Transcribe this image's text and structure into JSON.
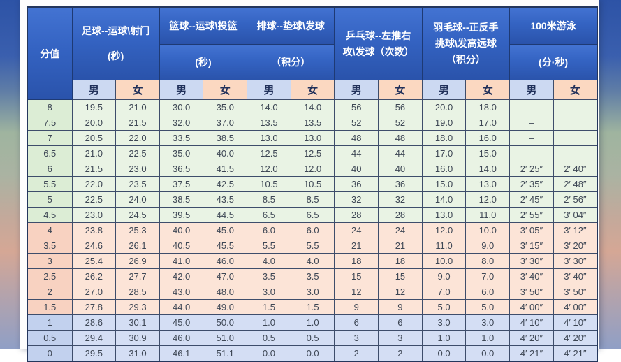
{
  "colors": {
    "header_blue_top": "#4373d2",
    "header_blue_bottom": "#2a53ab",
    "male_header_bg": "#ccd9f2",
    "female_header_bg": "#fbd8c1",
    "band_green_bg": "#e9f3e4",
    "band_green_score_bg": "#dcedd5",
    "band_pink_bg": "#fce4d7",
    "band_pink_score_bg": "#f8d2c1",
    "band_blue_bg": "#d4def4",
    "band_blue_score_bg": "#c2d1ee",
    "grid_border": "#3e4d6b",
    "header_text": "#ffffff",
    "cell_text": "#3e4755"
  },
  "chart_data": {
    "type": "table",
    "score_column": "分值",
    "gender_labels": [
      "男",
      "女"
    ],
    "groups": [
      {
        "id": "football",
        "lines": [
          "足球--运球\\射门",
          "(秒)"
        ]
      },
      {
        "id": "basketball",
        "lines": [
          "篮球--运球\\投篮",
          "(秒)"
        ]
      },
      {
        "id": "volleyball",
        "lines": [
          "排球--垫球\\发球",
          "（积分）"
        ]
      },
      {
        "id": "pingpong",
        "lines": [
          "乒乓球--左推右",
          "攻\\发球（次数）"
        ]
      },
      {
        "id": "badminton",
        "lines": [
          "羽毛球--正反手",
          "挑球\\发高远球",
          "（积分）"
        ]
      },
      {
        "id": "swimming",
        "lines": [
          "100米游泳",
          "(分·秒)"
        ]
      }
    ],
    "rows": [
      {
        "score": "8",
        "band": "green",
        "values": [
          "19.5",
          "21.0",
          "30.0",
          "35.0",
          "14.0",
          "14.0",
          "56",
          "56",
          "20.0",
          "18.0",
          "–",
          ""
        ]
      },
      {
        "score": "7.5",
        "band": "green",
        "values": [
          "20.0",
          "21.5",
          "32.0",
          "37.0",
          "13.5",
          "13.5",
          "52",
          "52",
          "19.0",
          "17.0",
          "–",
          ""
        ]
      },
      {
        "score": "7",
        "band": "green",
        "values": [
          "20.5",
          "22.0",
          "33.5",
          "38.5",
          "13.0",
          "13.0",
          "48",
          "48",
          "18.0",
          "16.0",
          "–",
          ""
        ]
      },
      {
        "score": "6.5",
        "band": "green",
        "values": [
          "21.0",
          "22.5",
          "35.0",
          "40.0",
          "12.5",
          "12.5",
          "44",
          "44",
          "17.0",
          "15.0",
          "–",
          ""
        ]
      },
      {
        "score": "6",
        "band": "green",
        "values": [
          "21.5",
          "23.0",
          "36.5",
          "41.5",
          "12.0",
          "12.0",
          "40",
          "40",
          "16.0",
          "14.0",
          "2′ 25″",
          "2′ 40″"
        ]
      },
      {
        "score": "5.5",
        "band": "green",
        "values": [
          "22.0",
          "23.5",
          "37.5",
          "42.5",
          "10.5",
          "10.5",
          "36",
          "36",
          "15.0",
          "13.0",
          "2′ 35″",
          "2′ 48″"
        ]
      },
      {
        "score": "5",
        "band": "green",
        "values": [
          "22.5",
          "24.0",
          "38.5",
          "43.5",
          "8.5",
          "8.5",
          "32",
          "32",
          "14.0",
          "12.0",
          "2′ 45″",
          "2′ 56″"
        ]
      },
      {
        "score": "4.5",
        "band": "green",
        "values": [
          "23.0",
          "24.5",
          "39.5",
          "44.5",
          "6.5",
          "6.5",
          "28",
          "28",
          "13.0",
          "11.0",
          "2′ 55″",
          "3′ 04″"
        ]
      },
      {
        "score": "4",
        "band": "pink",
        "values": [
          "23.8",
          "25.3",
          "40.0",
          "45.0",
          "6.0",
          "6.0",
          "24",
          "24",
          "12.0",
          "10.0",
          "3′ 05″",
          "3′ 12″"
        ]
      },
      {
        "score": "3.5",
        "band": "pink",
        "values": [
          "24.6",
          "26.1",
          "40.5",
          "45.5",
          "5.5",
          "5.5",
          "21",
          "21",
          "11.0",
          "9.0",
          "3′ 15″",
          "3′ 20″"
        ]
      },
      {
        "score": "3",
        "band": "pink",
        "values": [
          "25.4",
          "26.9",
          "41.0",
          "46.0",
          "4.0",
          "4.0",
          "18",
          "18",
          "10.0",
          "8.0",
          "3′ 30″",
          "3′ 30″"
        ]
      },
      {
        "score": "2.5",
        "band": "pink",
        "values": [
          "26.2",
          "27.7",
          "42.0",
          "47.0",
          "3.5",
          "3.5",
          "15",
          "15",
          "9.0",
          "7.0",
          "3′ 40″",
          "3′ 40″"
        ]
      },
      {
        "score": "2",
        "band": "pink",
        "values": [
          "27.0",
          "28.5",
          "43.0",
          "48.0",
          "3.0",
          "3.0",
          "12",
          "12",
          "7.0",
          "6.0",
          "3′ 50″",
          "3′ 50″"
        ]
      },
      {
        "score": "1.5",
        "band": "pink",
        "values": [
          "27.8",
          "29.3",
          "44.0",
          "49.0",
          "1.5",
          "1.5",
          "9",
          "9",
          "5.0",
          "5.0",
          "4′ 00″",
          "4′ 00″"
        ]
      },
      {
        "score": "1",
        "band": "blue",
        "values": [
          "28.6",
          "30.1",
          "45.0",
          "50.0",
          "1.0",
          "1.0",
          "6",
          "6",
          "3.0",
          "3.0",
          "4′ 10″",
          "4′ 10″"
        ]
      },
      {
        "score": "0.5",
        "band": "blue",
        "values": [
          "29.4",
          "30.9",
          "46.0",
          "51.0",
          "0.5",
          "0.5",
          "3",
          "3",
          "1.0",
          "1.0",
          "4′ 20″",
          "4′ 20″"
        ]
      },
      {
        "score": "0",
        "band": "blue",
        "values": [
          "29.5",
          "31.0",
          "46.1",
          "51.1",
          "0.0",
          "0.0",
          "2",
          "2",
          "0.0",
          "0.0",
          "4′ 21″",
          "4′ 21″"
        ]
      }
    ]
  }
}
